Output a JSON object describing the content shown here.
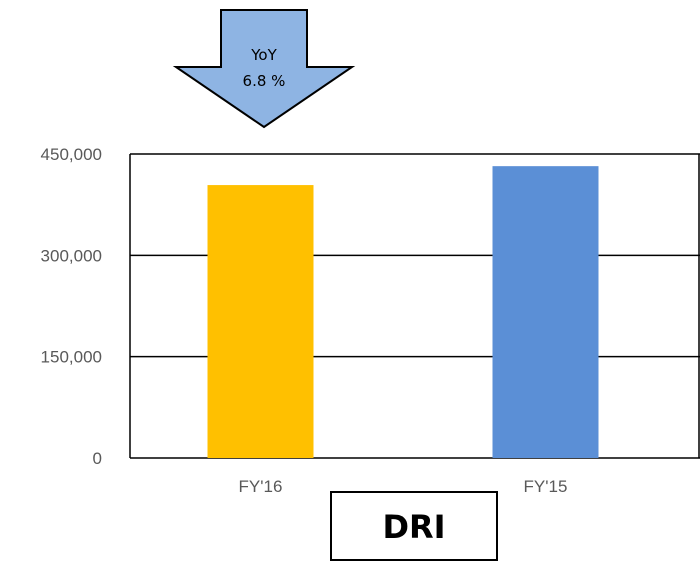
{
  "chart_data": {
    "type": "bar",
    "title": "DRI",
    "categories": [
      "FY'16",
      "FY'15"
    ],
    "values": [
      404000,
      432000
    ],
    "bar_colors": [
      "#FFC000",
      "#5B8FD6"
    ],
    "ylim": [
      0,
      450000
    ],
    "yticks": [
      0,
      150000,
      300000,
      450000
    ],
    "ytick_labels": [
      "0",
      "150,000",
      "300,000",
      "450,000"
    ],
    "grid": true,
    "annotation": {
      "line1": "YoY",
      "line2": "6.8 %",
      "shape": "down-arrow",
      "fill": "#8EB4E3"
    }
  }
}
